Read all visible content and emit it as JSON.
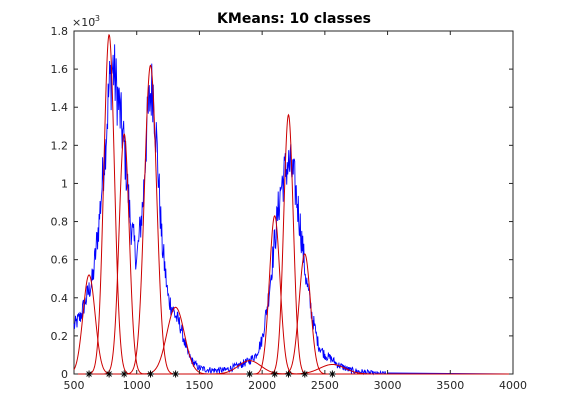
{
  "chart_data": {
    "type": "line",
    "title": "KMeans: 10 classes",
    "xlabel": "",
    "ylabel": "",
    "xlim": [
      500,
      4000
    ],
    "ylim": [
      0,
      0.0018
    ],
    "x_ticks": [
      500,
      1000,
      1500,
      2000,
      2500,
      3000,
      3500,
      4000
    ],
    "x_tick_labels": [
      "500",
      "1000",
      "1500",
      "2000",
      "2500",
      "3000",
      "3500",
      "4000"
    ],
    "y_ticks": [
      0,
      0.0002,
      0.0004,
      0.0006,
      0.0008,
      0.001,
      0.0012,
      0.0014,
      0.0016,
      0.0018
    ],
    "y_tick_labels": [
      "0",
      "0.2",
      "0.4",
      "0.6",
      "0.8",
      "1",
      "1.2",
      "1.4",
      "1.6",
      "1.8"
    ],
    "y_exponent": {
      "base": "×10",
      "power": "-3"
    },
    "grid": false,
    "colors": {
      "histogram": "#0000ff",
      "components": "#cc0000",
      "centers": "#000000",
      "axes": "#262626"
    },
    "series": [
      {
        "kind": "histogram",
        "x": [
          500,
          550,
          600,
          650,
          700,
          750,
          780,
          810,
          850,
          900,
          950,
          1000,
          1050,
          1080,
          1110,
          1130,
          1160,
          1200,
          1250,
          1300,
          1350,
          1400,
          1450,
          1500,
          1600,
          1700,
          1800,
          1900,
          1950,
          2000,
          2050,
          2100,
          2150,
          2200,
          2230,
          2260,
          2300,
          2350,
          2400,
          2450,
          2500,
          2550,
          2600,
          2700,
          2800,
          2900,
          3000,
          4000
        ],
        "values": [
          0.00025,
          0.0003,
          0.0004,
          0.0005,
          0.0008,
          0.0012,
          0.0015,
          0.00162,
          0.00145,
          0.0012,
          0.0008,
          0.0006,
          0.0009,
          0.00128,
          0.00148,
          0.0015,
          0.0012,
          0.0007,
          0.0004,
          0.00032,
          0.00025,
          0.00012,
          6e-05,
          3e-05,
          2e-05,
          2e-05,
          4e-05,
          7e-05,
          0.0001,
          0.00018,
          0.0004,
          0.0007,
          0.00098,
          0.0011,
          0.00108,
          0.001,
          0.0008,
          0.0005,
          0.0003,
          0.00015,
          0.0001,
          8e-05,
          5e-05,
          2e-05,
          1e-05,
          0.0,
          0.0,
          0.0
        ]
      },
      {
        "kind": "gaussian_components",
        "components": [
          {
            "mean": 620,
            "sigma": 48,
            "peak": 0.00052
          },
          {
            "mean": 780,
            "sigma": 42,
            "peak": 0.00178
          },
          {
            "mean": 900,
            "sigma": 40,
            "peak": 0.00126
          },
          {
            "mean": 1110,
            "sigma": 48,
            "peak": 0.00162
          },
          {
            "mean": 1310,
            "sigma": 70,
            "peak": 0.00035
          },
          {
            "mean": 1900,
            "sigma": 90,
            "peak": 7e-05
          },
          {
            "mean": 2100,
            "sigma": 42,
            "peak": 0.00083
          },
          {
            "mean": 2210,
            "sigma": 38,
            "peak": 0.00136
          },
          {
            "mean": 2340,
            "sigma": 45,
            "peak": 0.00063
          },
          {
            "mean": 2560,
            "sigma": 100,
            "peak": 5e-05
          }
        ]
      },
      {
        "kind": "centers",
        "x": [
          620,
          780,
          900,
          1110,
          1310,
          1900,
          2100,
          2210,
          2340,
          2560
        ]
      }
    ]
  }
}
